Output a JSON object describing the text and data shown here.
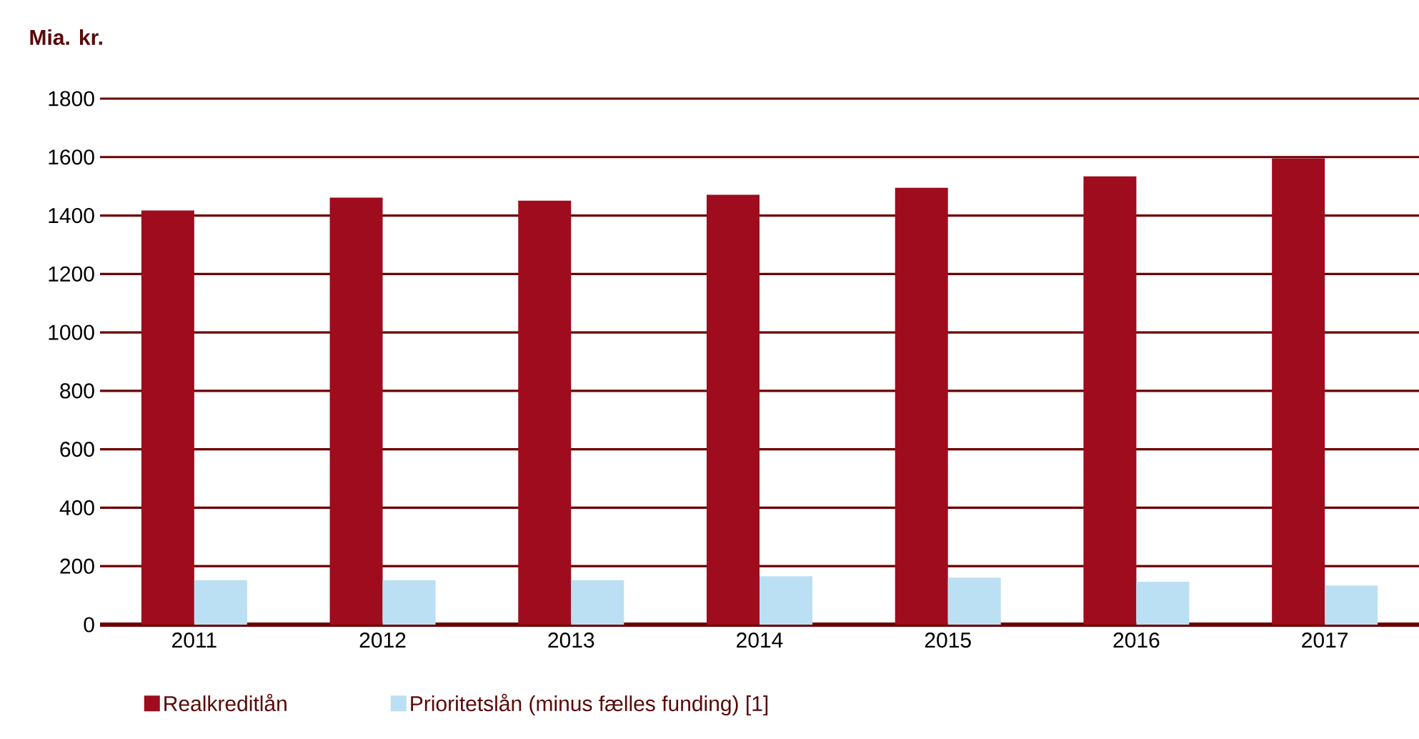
{
  "chart_data": {
    "type": "bar",
    "ylabel": "Mia. kr.",
    "categories": [
      "2011",
      "2012",
      "2013",
      "2014",
      "2015",
      "2016",
      "2017"
    ],
    "series": [
      {
        "name": "Realkreditlån",
        "color": "#9e0c1e",
        "values": [
          1417,
          1461,
          1451,
          1471,
          1495,
          1534,
          1596
        ]
      },
      {
        "name": "Prioritetslån (minus fælles funding) [1]",
        "color": "#bbdff3",
        "values": [
          152,
          152,
          152,
          166,
          161,
          147,
          134
        ]
      }
    ],
    "ylim": [
      0,
      1800
    ],
    "yticks": [
      0,
      200,
      400,
      600,
      800,
      1000,
      1200,
      1400,
      1600,
      1800
    ],
    "grid": "y",
    "legend": "bottom"
  }
}
